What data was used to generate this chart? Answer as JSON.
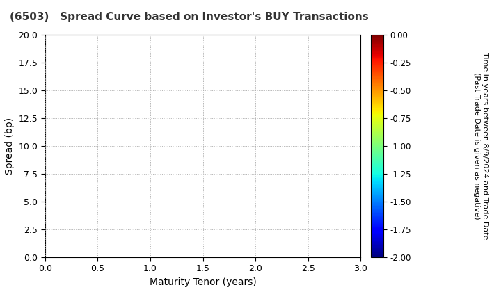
{
  "title": "(6503)   Spread Curve based on Investor's BUY Transactions",
  "xlabel": "Maturity Tenor (years)",
  "ylabel": "Spread (bp)",
  "colorbar_label_line1": "Time in years between 8/9/2024 and Trade Date",
  "colorbar_label_line2": "(Past Trade Date is given as negative)",
  "xlim": [
    0.0,
    3.0
  ],
  "ylim": [
    0.0,
    20.0
  ],
  "xticks": [
    0.0,
    0.5,
    1.0,
    1.5,
    2.0,
    2.5,
    3.0
  ],
  "yticks": [
    0.0,
    2.5,
    5.0,
    7.5,
    10.0,
    12.5,
    15.0,
    17.5,
    20.0
  ],
  "colorbar_vmin": -2.0,
  "colorbar_vmax": 0.0,
  "colorbar_ticks": [
    0.0,
    -0.25,
    -0.5,
    -0.75,
    -1.0,
    -1.25,
    -1.5,
    -1.75,
    -2.0
  ],
  "grid_color": "#b0b0b0",
  "background_color": "#ffffff",
  "title_fontsize": 11,
  "axis_label_fontsize": 10,
  "tick_fontsize": 9,
  "colorbar_tick_fontsize": 8.5,
  "colorbar_label_fontsize": 8,
  "cmap": "jet"
}
